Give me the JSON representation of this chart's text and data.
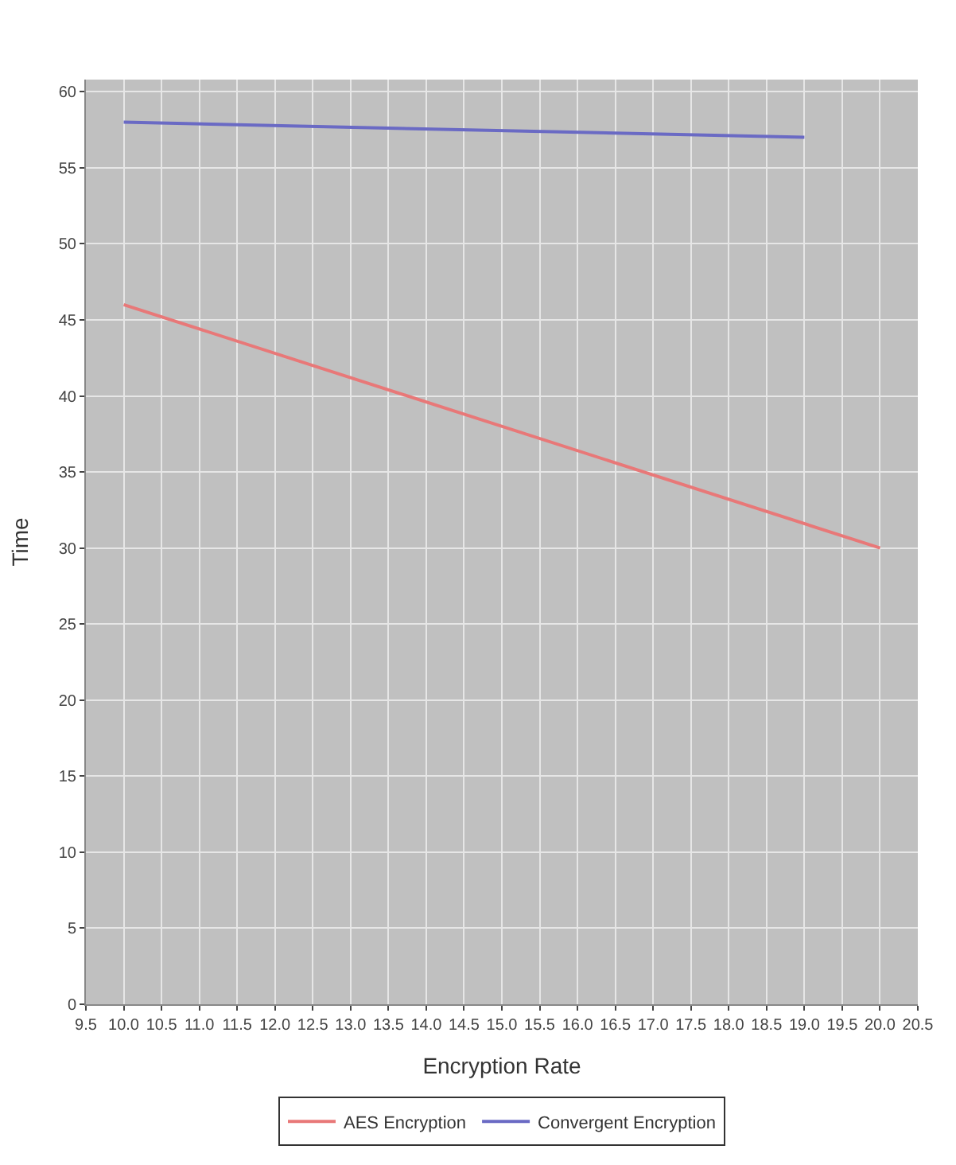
{
  "chart_data": {
    "type": "line",
    "xlabel": "Encryption Rate",
    "ylabel": "Time",
    "xlim": [
      9.5,
      20.5
    ],
    "xticks": [
      {
        "value": 9.5,
        "label": "9.5"
      },
      {
        "value": 10,
        "label": "10.0"
      },
      {
        "value": 10.5,
        "label": "10.5"
      },
      {
        "value": 11,
        "label": "11.0"
      },
      {
        "value": 11.5,
        "label": "11.5"
      },
      {
        "value": 12,
        "label": "12.0"
      },
      {
        "value": 12.5,
        "label": "12.5"
      },
      {
        "value": 13,
        "label": "13.0"
      },
      {
        "value": 13.5,
        "label": "13.5"
      },
      {
        "value": 14,
        "label": "14.0"
      },
      {
        "value": 14.5,
        "label": "14.5"
      },
      {
        "value": 15,
        "label": "15.0"
      },
      {
        "value": 15.5,
        "label": "15.5"
      },
      {
        "value": 16,
        "label": "16.0"
      },
      {
        "value": 16.5,
        "label": "16.5"
      },
      {
        "value": 17,
        "label": "17.0"
      },
      {
        "value": 17.5,
        "label": "17.5"
      },
      {
        "value": 18,
        "label": "18.0"
      },
      {
        "value": 18.5,
        "label": "18.5"
      },
      {
        "value": 19,
        "label": "19.0"
      },
      {
        "value": 19.5,
        "label": "19.5"
      },
      {
        "value": 20,
        "label": "20.0"
      },
      {
        "value": 20.5,
        "label": "20.5"
      }
    ],
    "ylim": [
      0,
      60.8
    ],
    "yticks": [
      0,
      5,
      10,
      15,
      20,
      25,
      30,
      35,
      40,
      45,
      50,
      55,
      60
    ],
    "grid": true,
    "legend": "bottom",
    "marker": "none",
    "line_style": "solid",
    "series": [
      {
        "name": "AES Encryption",
        "color": "#e87878",
        "x": [
          10,
          20
        ],
        "values": [
          46,
          30
        ]
      },
      {
        "name": "Convergent Encryption",
        "color": "#6a6ac4",
        "x": [
          10,
          19
        ],
        "values": [
          58,
          57
        ]
      }
    ]
  }
}
